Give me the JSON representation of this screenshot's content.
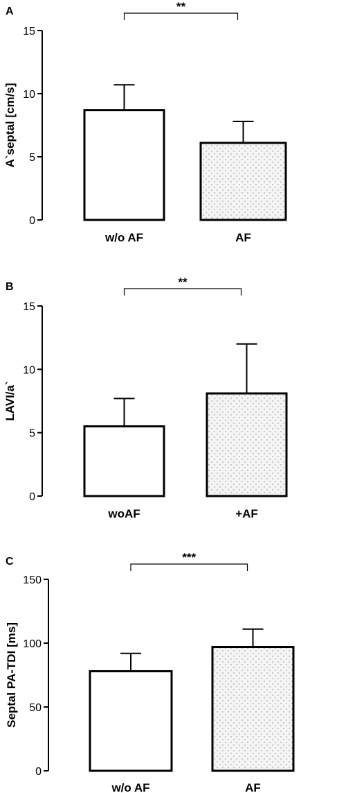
{
  "chart_data": [
    {
      "type": "bar",
      "panel_label": "A",
      "categories": [
        "w/o AF",
        "AF"
      ],
      "values": [
        8.7,
        6.1
      ],
      "errors": [
        2.0,
        1.7
      ],
      "fills": [
        "open",
        "dotted"
      ],
      "ylabel": "A`septal [cm/s]",
      "xlabel": "",
      "ylim": [
        0,
        15
      ],
      "yticks": [
        0,
        5,
        10,
        15
      ],
      "ytick_labels": [
        "0",
        "5",
        "10",
        "15"
      ],
      "significance": "**"
    },
    {
      "type": "bar",
      "panel_label": "B",
      "categories": [
        "woAF",
        "+AF"
      ],
      "values": [
        5.5,
        8.1
      ],
      "errors": [
        2.2,
        3.9
      ],
      "fills": [
        "open",
        "dotted"
      ],
      "ylabel": "LAVI/a`",
      "xlabel": "",
      "ylim": [
        0,
        15
      ],
      "yticks": [
        0,
        5,
        10,
        15
      ],
      "ytick_labels": [
        "0",
        "5",
        "10",
        "15"
      ],
      "significance": "**"
    },
    {
      "type": "bar",
      "panel_label": "C",
      "categories": [
        "w/o AF",
        "AF"
      ],
      "values": [
        78,
        97
      ],
      "errors": [
        14,
        14
      ],
      "fills": [
        "open",
        "dotted"
      ],
      "ylabel": "Septal PA-TDI [ms]",
      "xlabel": "",
      "ylim": [
        0,
        150
      ],
      "yticks": [
        0,
        50,
        100,
        150
      ],
      "ytick_labels": [
        "0",
        "50",
        "100",
        "150"
      ],
      "significance": "***"
    }
  ],
  "colors": {
    "stroke": "#000000",
    "open_fill": "#ffffff",
    "dot": "#8a8a8a",
    "dotted_bg": "#f4f4f4"
  }
}
